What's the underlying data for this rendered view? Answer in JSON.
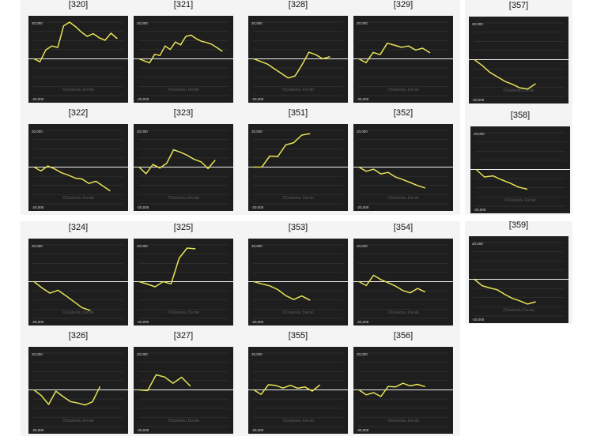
{
  "styles": {
    "panel_bg": "#1e1e1e",
    "grid_color": "#3c3c3c",
    "zero_line_color": "#f2f2f2",
    "series_color": "#e8e356",
    "page_bg": "#ffffff",
    "group_bg": "#f4f4f4"
  },
  "chart_data": [
    {
      "id": "320",
      "label": "[320]",
      "type": "line",
      "y_top_label": "20,000",
      "y_bottom_label": "-20,000",
      "watermark": "©Daikoku Denki",
      "ylim": [
        -20000,
        20000
      ],
      "grid": true,
      "values": [
        0,
        -1600,
        4900,
        7000,
        6200,
        18000,
        20000,
        17600,
        14600,
        12200,
        13700,
        11500,
        10100,
        14000,
        11200
      ]
    },
    {
      "id": "321",
      "label": "[321]",
      "type": "line",
      "y_top_label": "20,000",
      "y_bottom_label": "-20,000",
      "watermark": "©Daikoku Denki",
      "ylim": [
        -20000,
        20000
      ],
      "grid": true,
      "values": [
        0,
        -1100,
        -2200,
        2500,
        1800,
        7000,
        5100,
        9200,
        7600,
        12200,
        12900,
        11000,
        9600,
        8900,
        7900,
        6100,
        4200
      ]
    },
    {
      "id": "328",
      "label": "[328]",
      "type": "line",
      "y_top_label": "20,000",
      "y_bottom_label": "-20,000",
      "watermark": "©Daikoku Denki",
      "ylim": [
        -20000,
        20000
      ],
      "grid": true,
      "values": [
        0,
        -1400,
        -2900,
        -5400,
        -7900,
        -10400,
        -9300,
        -3300,
        3600,
        2300,
        0,
        1100
      ]
    },
    {
      "id": "329",
      "label": "[329]",
      "type": "line",
      "y_top_label": "20,000",
      "y_bottom_label": "-20,000",
      "watermark": "©Daikoku Denki",
      "ylim": [
        -20000,
        20000
      ],
      "grid": true,
      "values": [
        0,
        -2100,
        3500,
        2300,
        8500,
        7500,
        6300,
        7000,
        4800,
        5800,
        3400
      ]
    },
    {
      "id": "322",
      "label": "[322]",
      "type": "line",
      "y_top_label": "20,000",
      "y_bottom_label": "-20,000",
      "watermark": "©Daikoku Denki",
      "ylim": [
        -20000,
        20000
      ],
      "grid": true,
      "values": [
        0,
        -2100,
        600,
        -1000,
        -3100,
        -4400,
        -6000,
        -6500,
        -8900,
        -7700,
        -10300,
        -12800
      ]
    },
    {
      "id": "323",
      "label": "[323]",
      "type": "line",
      "y_top_label": "20,000",
      "y_bottom_label": "-20,000",
      "watermark": "©Daikoku Denki",
      "ylim": [
        -20000,
        20000
      ],
      "grid": true,
      "values": [
        0,
        -3600,
        1400,
        -500,
        2000,
        9400,
        8100,
        6400,
        4200,
        2900,
        -800,
        3600
      ]
    },
    {
      "id": "351",
      "label": "[351]",
      "type": "line",
      "y_top_label": "20,000",
      "y_bottom_label": "-20,000",
      "watermark": "©Daikoku Denki",
      "ylim": [
        -20000,
        20000
      ],
      "grid": true,
      "values": [
        0,
        0,
        6000,
        5700,
        12100,
        13300,
        17400,
        18200
      ]
    },
    {
      "id": "352",
      "label": "[352]",
      "type": "line",
      "y_top_label": "20,000",
      "y_bottom_label": "-20,000",
      "watermark": "©Daikoku Denki",
      "ylim": [
        -20000,
        20000
      ],
      "grid": true,
      "values": [
        0,
        -2300,
        -1100,
        -3700,
        -2900,
        -5400,
        -6800,
        -8400,
        -10000,
        -11300
      ]
    },
    {
      "id": "357",
      "label": "[357]",
      "type": "line",
      "y_top_label": "20,000",
      "y_bottom_label": "-20,000",
      "watermark": "©Daikoku Denki",
      "ylim": [
        -20000,
        20000
      ],
      "grid": true,
      "values": [
        0,
        -3100,
        -6800,
        -9300,
        -11800,
        -13400,
        -15400,
        -16000,
        -13200
      ]
    },
    {
      "id": "358",
      "label": "[358]",
      "type": "line",
      "y_top_label": "20,000",
      "y_bottom_label": "-20,000",
      "watermark": "©Daikoku Denki",
      "ylim": [
        -20000,
        20000
      ],
      "grid": true,
      "values": [
        0,
        -4100,
        -3500,
        -5600,
        -7400,
        -9600,
        -10700
      ]
    },
    {
      "id": "324",
      "label": "[324]",
      "type": "line",
      "y_top_label": "20,000",
      "y_bottom_label": "-20,000",
      "watermark": "©Daikoku Denki",
      "ylim": [
        -20000,
        20000
      ],
      "grid": true,
      "values": [
        0,
        -3400,
        -6300,
        -4700,
        -7700,
        -10900,
        -14100,
        -15600
      ]
    },
    {
      "id": "325",
      "label": "[325]",
      "type": "line",
      "y_top_label": "20,000",
      "y_bottom_label": "-20,000",
      "watermark": "©Daikoku Denki",
      "ylim": [
        -20000,
        20000
      ],
      "grid": true,
      "values": [
        0,
        -1300,
        -2800,
        0,
        -1200,
        12700,
        18300,
        17900
      ]
    },
    {
      "id": "353",
      "label": "[353]",
      "type": "line",
      "y_top_label": "20,000",
      "y_bottom_label": "-20,000",
      "watermark": "©Daikoku Denki",
      "ylim": [
        -20000,
        20000
      ],
      "grid": true,
      "values": [
        0,
        -1200,
        -2300,
        -4300,
        -7600,
        -9700,
        -7800,
        -10000
      ]
    },
    {
      "id": "354",
      "label": "[354]",
      "type": "line",
      "y_top_label": "20,000",
      "y_bottom_label": "-20,000",
      "watermark": "©Daikoku Denki",
      "ylim": [
        -20000,
        20000
      ],
      "grid": true,
      "values": [
        0,
        -2100,
        3500,
        1100,
        -600,
        -2400,
        -4800,
        -6100,
        -3700,
        -5500
      ]
    },
    {
      "id": "359",
      "label": "[359]",
      "type": "line",
      "y_top_label": "20,000",
      "y_bottom_label": "-20,000",
      "watermark": "©Daikoku Denki",
      "ylim": [
        -20000,
        20000
      ],
      "grid": true,
      "values": [
        0,
        -3500,
        -4700,
        -5700,
        -8200,
        -10400,
        -11800,
        -13500,
        -12300
      ]
    },
    {
      "id": "326",
      "label": "[326]",
      "type": "line",
      "y_top_label": "20,000",
      "y_bottom_label": "-20,000",
      "watermark": "©Daikoku Denki",
      "ylim": [
        -20000,
        20000
      ],
      "grid": true,
      "values": [
        0,
        -3100,
        -7900,
        -700,
        -3700,
        -6400,
        -7200,
        -8200,
        -6500,
        1600
      ]
    },
    {
      "id": "327",
      "label": "[327]",
      "type": "line",
      "y_top_label": "20,000",
      "y_bottom_label": "-20,000",
      "watermark": "©Daikoku Denki",
      "ylim": [
        -20000,
        20000
      ],
      "grid": true,
      "values": [
        0,
        -400,
        8200,
        7000,
        3600,
        6900,
        2200
      ]
    },
    {
      "id": "355",
      "label": "[355]",
      "type": "line",
      "y_top_label": "20,000",
      "y_bottom_label": "-20,000",
      "watermark": "©Daikoku Denki",
      "ylim": [
        -20000,
        20000
      ],
      "grid": true,
      "values": [
        0,
        -2500,
        2800,
        2400,
        1000,
        2500,
        900,
        1600,
        -700,
        2600
      ]
    },
    {
      "id": "356",
      "label": "[356]",
      "type": "line",
      "y_top_label": "20,000",
      "y_bottom_label": "-20,000",
      "watermark": "©Daikoku Denki",
      "ylim": [
        -20000,
        20000
      ],
      "grid": true,
      "values": [
        0,
        -2700,
        -1500,
        -3600,
        1900,
        1600,
        3600,
        2200,
        3000,
        1800
      ]
    }
  ]
}
